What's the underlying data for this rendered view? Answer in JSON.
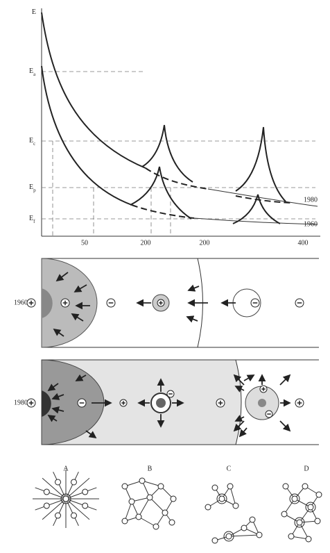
{
  "energy_plot": {
    "y_labels": [
      {
        "base": "E",
        "sub": ""
      },
      {
        "base": "E",
        "sub": "a"
      },
      {
        "base": "E",
        "sub": "c"
      },
      {
        "base": "E",
        "sub": "p"
      },
      {
        "base": "E",
        "sub": "f"
      }
    ],
    "x_labels": [
      "50",
      "200",
      "200",
      "400"
    ],
    "curve_labels": [
      "1980",
      "1960"
    ]
  },
  "panels": {
    "top_label": "1960",
    "bottom_label": "1980"
  },
  "networks": {
    "labels": [
      "A",
      "B",
      "C",
      "D"
    ]
  }
}
